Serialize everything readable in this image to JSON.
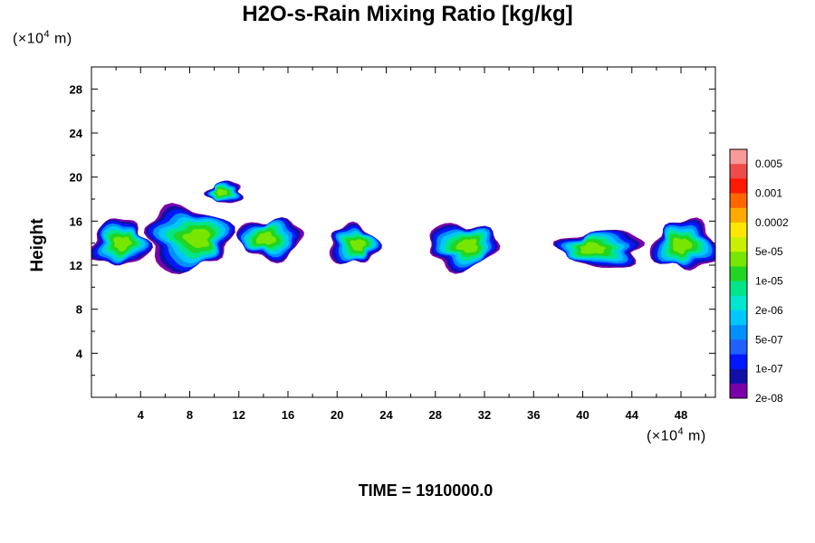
{
  "chart_data": {
    "type": "heatmap",
    "title": "H2O-s-Rain Mixing Ratio [kg/kg]",
    "xlabel": "",
    "ylabel": "Height",
    "x_unit_prefix": "(×10",
    "x_unit_exp": "4",
    "x_unit_suffix": " m)",
    "y_unit_prefix": "(×10",
    "y_unit_exp": "4",
    "y_unit_suffix": " m)",
    "xlim": [
      0,
      50.8
    ],
    "ylim": [
      0,
      30
    ],
    "x_ticks": [
      4,
      8,
      12,
      16,
      20,
      24,
      28,
      32,
      36,
      40,
      44,
      48
    ],
    "x_tick_labels": [
      "4",
      "8",
      "12",
      "16",
      "20",
      "24",
      "28",
      "32",
      "36",
      "40",
      "44",
      "48"
    ],
    "y_ticks": [
      4,
      8,
      12,
      16,
      20,
      24,
      28
    ],
    "y_tick_labels": [
      "4",
      "8",
      "12",
      "16",
      "20",
      "24",
      "28"
    ],
    "colorbar": {
      "labels": [
        "0.005",
        "0.001",
        "0.0002",
        "5e-05",
        "1e-05",
        "2e-06",
        "5e-07",
        "1e-07",
        "2e-08"
      ],
      "colors": [
        "#f99a9a",
        "#ef4b4b",
        "#ff1a00",
        "#ff6600",
        "#ffaa00",
        "#ffe600",
        "#c8f000",
        "#78e600",
        "#22d522",
        "#00e58a",
        "#00e6cf",
        "#00c8ff",
        "#0090ff",
        "#2060ff",
        "#0018ff",
        "#1010a8",
        "#7a00aa"
      ]
    },
    "cloud_cells": [
      {
        "x_center": 2.3,
        "x_halfwidth": 2.3,
        "y_bottom": 11.9,
        "y_top": 16.1
      },
      {
        "x_center": 7.8,
        "x_halfwidth": 3.4,
        "y_bottom": 11.6,
        "y_top": 17.3
      },
      {
        "x_center": 14.6,
        "x_halfwidth": 2.6,
        "y_bottom": 12.6,
        "y_top": 16.2
      },
      {
        "x_center": 10.9,
        "x_halfwidth": 1.4,
        "y_bottom": 17.6,
        "y_top": 19.6
      },
      {
        "x_center": 21.3,
        "x_halfwidth": 2.0,
        "y_bottom": 12.1,
        "y_top": 15.6
      },
      {
        "x_center": 30.2,
        "x_halfwidth": 2.8,
        "y_bottom": 11.7,
        "y_top": 15.8
      },
      {
        "x_center": 41.6,
        "x_halfwidth": 3.3,
        "y_bottom": 11.8,
        "y_top": 15.2
      },
      {
        "x_center": 48.3,
        "x_halfwidth": 2.6,
        "y_bottom": 11.6,
        "y_top": 16.0
      }
    ],
    "grid": false,
    "legend": "right",
    "footer_prefix": "TIME = ",
    "time": "1910000.0"
  }
}
